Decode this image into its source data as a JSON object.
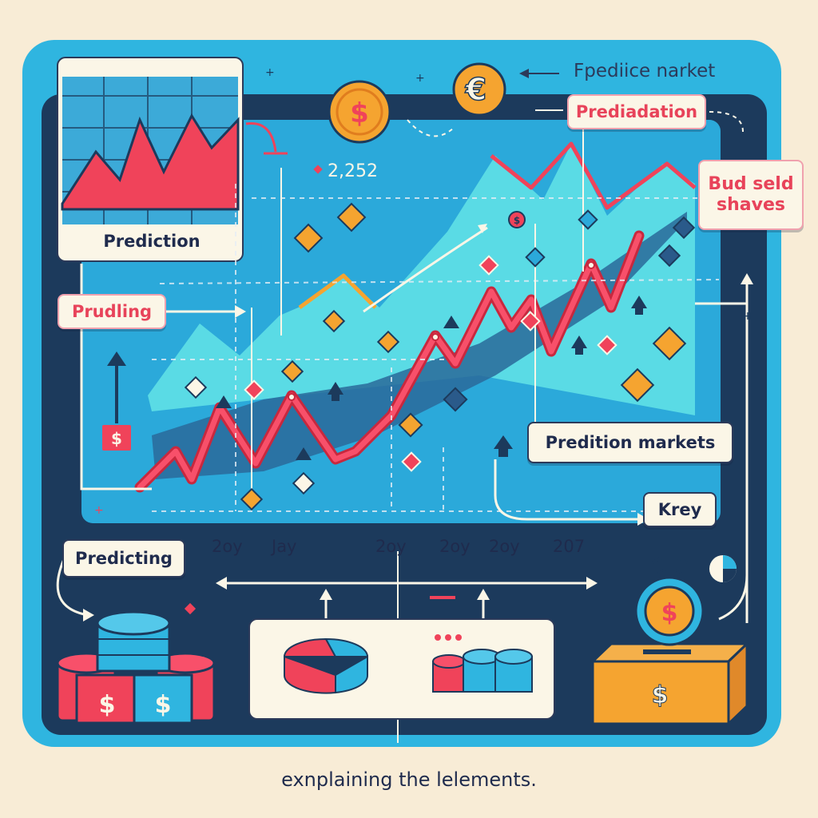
{
  "header": {
    "market_title": "Fpediice narket"
  },
  "labels": {
    "top_left": "Prediction",
    "top_right": "Prediadation",
    "value_readout": "2,252",
    "callout_right": "Bud seld\nshaves",
    "left_side": "Prudling",
    "right_mid": "Predition markets",
    "key": "Krey",
    "bottom_left": "Predicting"
  },
  "time_axis": [
    "2oy",
    "Jay",
    "2oy",
    "2oy",
    "2oy",
    "207"
  ],
  "footer": {
    "caption": "exnplaining the lelements."
  },
  "icons": [
    "dollar-coin-icon",
    "euro-coin-icon",
    "coin-stack-icon",
    "pie-chart-icon",
    "donation-box-icon",
    "dollar-tag-icon",
    "diamond-marker-icon",
    "up-arrow-icon"
  ],
  "colors": {
    "background": "#f8ecd6",
    "frame": "#2fb5e0",
    "panel": "#1c3a5c",
    "accent_red": "#f0435a",
    "accent_cyan": "#54dde8",
    "accent_orange": "#f5a430"
  }
}
